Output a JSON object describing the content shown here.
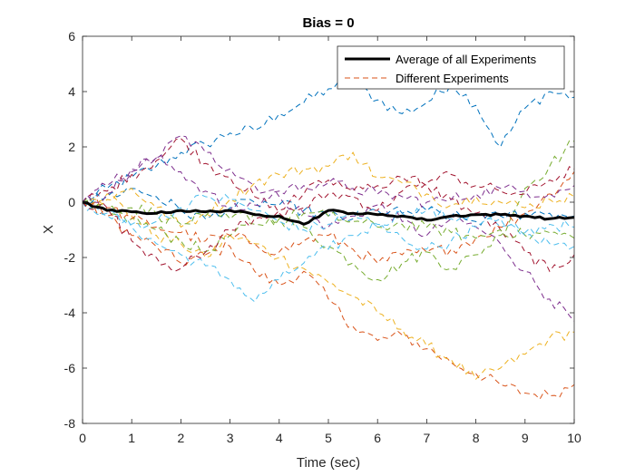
{
  "chart_data": {
    "type": "line",
    "title": "Bias = 0",
    "xlabel": "Time (sec)",
    "ylabel": "X",
    "xlim": [
      0,
      10
    ],
    "ylim": [
      -8,
      6
    ],
    "xticks": [
      0,
      1,
      2,
      3,
      4,
      5,
      6,
      7,
      8,
      9,
      10
    ],
    "yticks": [
      -8,
      -6,
      -4,
      -2,
      0,
      2,
      4,
      6
    ],
    "grid": false,
    "legend_position": "top-right",
    "legend": [
      {
        "label": "Average of all Experiments",
        "style": "solid",
        "color": "#000000"
      },
      {
        "label": "Different Experiments",
        "style": "dashed",
        "color": "#D95319"
      }
    ],
    "x": [
      0,
      0.5,
      1,
      1.5,
      2,
      2.5,
      3,
      3.5,
      4,
      4.5,
      5,
      5.5,
      6,
      6.5,
      7,
      7.5,
      8,
      8.5,
      9,
      9.5,
      10
    ],
    "average": {
      "name": "Average of all Experiments",
      "color": "#000000",
      "values": [
        0,
        -0.3,
        -0.35,
        -0.4,
        -0.3,
        -0.35,
        -0.3,
        -0.45,
        -0.5,
        -0.8,
        -0.3,
        -0.4,
        -0.45,
        -0.5,
        -0.65,
        -0.5,
        -0.45,
        -0.45,
        -0.5,
        -0.6,
        -0.55
      ]
    },
    "series": [
      {
        "color": "#0072BD",
        "values": [
          0,
          0.5,
          0.9,
          1.3,
          1.8,
          2.1,
          2.5,
          2.6,
          3.2,
          3.6,
          4.1,
          4.3,
          3.7,
          3.2,
          3.6,
          4.3,
          3.5,
          2.0,
          3.4,
          4.0,
          3.8
        ]
      },
      {
        "color": "#D95319",
        "values": [
          0,
          -0.5,
          -1.2,
          -1.6,
          -2.2,
          -1.9,
          -1.6,
          -2.5,
          -3.0,
          -2.5,
          -3.5,
          -4.5,
          -5.0,
          -4.8,
          -5.3,
          -5.8,
          -6.2,
          -6.6,
          -6.9,
          -7.0,
          -6.6
        ]
      },
      {
        "color": "#EDB120",
        "values": [
          0,
          0.3,
          -0.5,
          -1.2,
          -1.5,
          -2.0,
          -1.2,
          -1.5,
          -2.0,
          -2.4,
          -2.9,
          -3.4,
          -4.0,
          -4.6,
          -5.2,
          -5.7,
          -6.4,
          -6.0,
          -5.5,
          -4.9,
          -4.7
        ]
      },
      {
        "color": "#7E2F8E",
        "values": [
          0,
          0.6,
          1.2,
          1.6,
          2.4,
          1.8,
          1.2,
          0.6,
          0.2,
          -0.4,
          -0.9,
          -0.5,
          -0.1,
          -0.7,
          -1.2,
          -0.6,
          -0.9,
          -1.5,
          -2.5,
          -3.5,
          -4.3
        ]
      },
      {
        "color": "#77AC30",
        "values": [
          0,
          -0.3,
          -0.6,
          -1.0,
          -1.4,
          -1.8,
          -1.2,
          -0.8,
          -0.6,
          -0.9,
          -1.6,
          -2.2,
          -2.8,
          -2.2,
          -1.8,
          -2.4,
          -1.9,
          -1.2,
          0.5,
          1.3,
          2.2
        ]
      },
      {
        "color": "#4DBEEE",
        "values": [
          0,
          -0.4,
          -0.9,
          -1.5,
          -1.9,
          -2.3,
          -2.8,
          -3.6,
          -2.8,
          -2.2,
          -1.7,
          -1.2,
          -0.8,
          -0.4,
          -0.3,
          -0.6,
          -0.4,
          -0.9,
          -1.1,
          -0.8,
          -0.9
        ]
      },
      {
        "color": "#A2142F",
        "values": [
          0,
          0.4,
          1.0,
          1.5,
          2.3,
          1.4,
          0.9,
          0.2,
          -0.4,
          -0.2,
          0.3,
          0.2,
          -0.3,
          0.4,
          0.6,
          0.1,
          -0.4,
          -1.0,
          -1.8,
          -2.5,
          -1.9
        ]
      },
      {
        "color": "#0072BD",
        "values": [
          0,
          0.2,
          0.5,
          0.2,
          -0.3,
          -0.6,
          -0.2,
          0.0,
          -0.1,
          -0.3,
          -0.5,
          -0.6,
          -0.3,
          -0.4,
          -0.3,
          -0.5,
          -0.7,
          -0.5,
          -0.4,
          -0.4,
          -0.5
        ]
      },
      {
        "color": "#D95319",
        "values": [
          0,
          -0.2,
          -0.6,
          -0.9,
          -1.1,
          -1.4,
          -1.2,
          -1.5,
          -1.8,
          -1.4,
          -1.2,
          -1.7,
          -2.2,
          -1.9,
          -1.8,
          -1.7,
          -1.3,
          -0.9,
          -0.4,
          0.3,
          1.1
        ]
      },
      {
        "color": "#EDB120",
        "values": [
          0,
          0.1,
          0.5,
          -0.2,
          -0.9,
          -0.4,
          0.1,
          0.7,
          1.0,
          1.2,
          1.3,
          1.8,
          0.9,
          0.7,
          0.3,
          -0.1,
          0.2,
          0.0,
          -0.2,
          0.1,
          0.2
        ]
      },
      {
        "color": "#7E2F8E",
        "values": [
          0,
          0.3,
          1.1,
          1.6,
          1.1,
          0.4,
          -0.3,
          -0.1,
          0.4,
          0.6,
          0.7,
          0.5,
          0.3,
          0.2,
          0.0,
          0.1,
          0.3,
          0.5,
          0.4,
          0.3,
          0.6
        ]
      },
      {
        "color": "#77AC30",
        "values": [
          0,
          -0.3,
          -0.2,
          -0.4,
          -0.8,
          -0.5,
          -0.6,
          -0.4,
          -0.6,
          -0.4,
          -0.5,
          -0.7,
          -0.9,
          -0.8,
          -0.9,
          -1.1,
          -1.3,
          -1.0,
          -1.2,
          -1.1,
          -1.3
        ]
      },
      {
        "color": "#4DBEEE",
        "values": [
          0,
          -0.5,
          -0.8,
          -0.7,
          -0.2,
          0.2,
          0.1,
          -0.3,
          -0.7,
          -1.0,
          -0.8,
          -0.4,
          -0.9,
          -1.3,
          -1.7,
          -1.4,
          -0.9,
          -0.6,
          -1.2,
          -1.5,
          -1.6
        ]
      },
      {
        "color": "#A2142F",
        "values": [
          0,
          -0.2,
          -1.4,
          -2.0,
          -2.4,
          -1.8,
          -1.0,
          -0.6,
          -0.3,
          0.3,
          0.8,
          0.4,
          0.6,
          0.9,
          0.7,
          1.0,
          0.6,
          0.4,
          0.3,
          0.8,
          1.2
        ]
      }
    ]
  }
}
